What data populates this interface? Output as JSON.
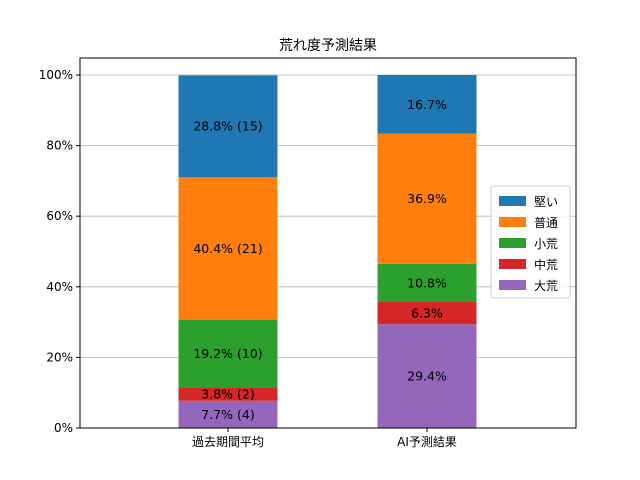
{
  "chart_data": {
    "type": "bar",
    "stacked": true,
    "title": "荒れ度予測結果",
    "xlabel": "",
    "ylabel": "",
    "categories": [
      "過去期間平均",
      "AI予測結果"
    ],
    "ylim": [
      0,
      100
    ],
    "yticks": [
      "0%",
      "20%",
      "40%",
      "60%",
      "80%",
      "100%"
    ],
    "ytick_values": [
      0,
      20,
      40,
      60,
      80,
      100
    ],
    "grid": "horizontal",
    "legend_position": "center-right",
    "legend_order": [
      "堅い",
      "普通",
      "小荒",
      "中荒",
      "大荒"
    ],
    "series": [
      {
        "name": "大荒",
        "color": "#9467bd",
        "values": [
          7.7,
          29.4
        ],
        "labels": [
          "7.7% (4)",
          "29.4%"
        ]
      },
      {
        "name": "中荒",
        "color": "#d62728",
        "values": [
          3.8,
          6.3
        ],
        "labels": [
          "3.8% (2)",
          "6.3%"
        ]
      },
      {
        "name": "小荒",
        "color": "#2ca02c",
        "values": [
          19.2,
          10.8
        ],
        "labels": [
          "19.2% (10)",
          "10.8%"
        ]
      },
      {
        "name": "普通",
        "color": "#ff7f0e",
        "values": [
          40.4,
          36.9
        ],
        "labels": [
          "40.4% (21)",
          "36.9%"
        ]
      },
      {
        "name": "堅い",
        "color": "#1f77b4",
        "values": [
          28.8,
          16.7
        ],
        "labels": [
          "28.8% (15)",
          "16.7%"
        ]
      }
    ]
  }
}
